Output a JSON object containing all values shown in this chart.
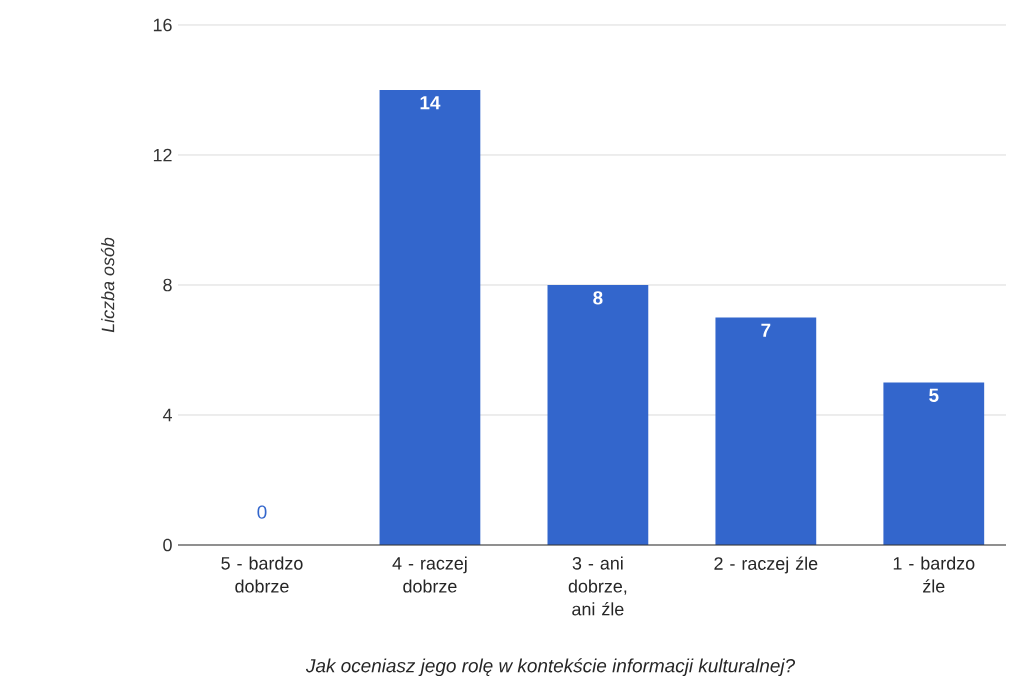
{
  "chart_data": {
    "type": "bar",
    "xlabel": "Jak oceniasz jego rolę w kontekście informacji kulturalnej?",
    "ylabel": "Liczba osób",
    "categories": [
      "5 - bardzo dobrze",
      "4 - raczej dobrze",
      "3 - ani dobrze, ani źle",
      "2 - raczej źle",
      "1 - bardzo źle"
    ],
    "values": [
      0,
      14,
      8,
      7,
      5
    ],
    "color": "#3366cc",
    "ylim": [
      0,
      16
    ],
    "yticks": [
      0,
      4,
      8,
      12,
      16
    ],
    "grid": "y",
    "data_labels": true
  }
}
